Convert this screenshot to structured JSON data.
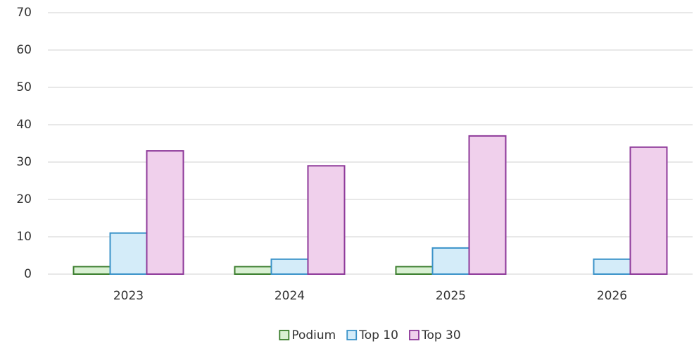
{
  "chart_data": {
    "type": "bar",
    "categories": [
      "2023",
      "2024",
      "2025",
      "2026"
    ],
    "series": [
      {
        "name": "Podium",
        "color": "#d9f0d3",
        "stroke": "#3a7d2c",
        "values": [
          2,
          2,
          2,
          0
        ]
      },
      {
        "name": "Top 10",
        "color": "#d4ecf9",
        "stroke": "#3b93c9",
        "values": [
          11,
          4,
          7,
          4
        ]
      },
      {
        "name": "Top 30",
        "color": "#f0d0ec",
        "stroke": "#8e3a9a",
        "values": [
          33,
          29,
          37,
          34
        ]
      }
    ],
    "ylim": [
      0,
      70
    ],
    "yticks": [
      0,
      10,
      20,
      30,
      40,
      50,
      60,
      70
    ],
    "grid": true,
    "legend": "bottom"
  }
}
